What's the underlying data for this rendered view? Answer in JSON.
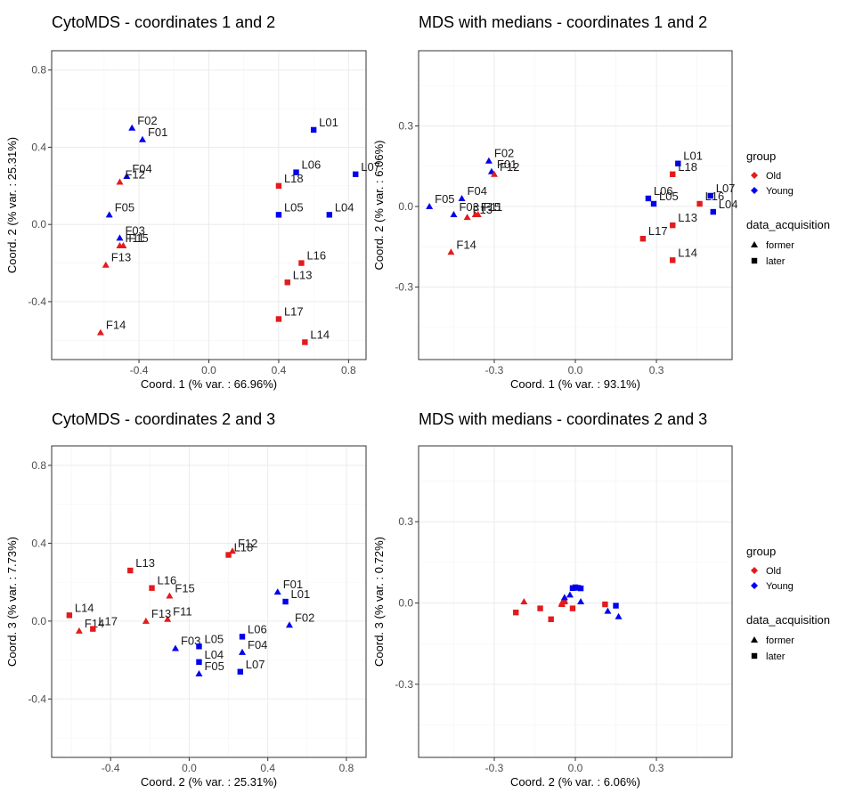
{
  "colors": {
    "Old": "#e41a1c",
    "Young": "#0000ee"
  },
  "chart_data": [
    {
      "type": "scatter",
      "title": "CytoMDS - coordinates 1 and 2",
      "xlabel": "Coord. 1 (% var. : 66.96%)",
      "ylabel": "Coord. 2 (% var. : 25.31%)",
      "xlim": [
        -0.9,
        0.9
      ],
      "ylim": [
        -0.7,
        0.9
      ],
      "xticks": [
        -0.4,
        0.0,
        0.4,
        0.8
      ],
      "xtick_labels": [
        "-0.4",
        "0.0",
        "0.4",
        "0.8"
      ],
      "yticks": [
        -0.4,
        0.0,
        0.4,
        0.8
      ],
      "ytick_labels": [
        "-0.4",
        "0.0",
        "0.4",
        "0.8"
      ],
      "grid": true,
      "points": [
        {
          "label": "F01",
          "x": -0.38,
          "y": 0.44,
          "group": "Young",
          "acq": "former"
        },
        {
          "label": "F02",
          "x": -0.44,
          "y": 0.5,
          "group": "Young",
          "acq": "former"
        },
        {
          "label": "F03",
          "x": -0.51,
          "y": -0.07,
          "group": "Young",
          "acq": "former"
        },
        {
          "label": "F04",
          "x": -0.47,
          "y": 0.25,
          "group": "Young",
          "acq": "former"
        },
        {
          "label": "F05",
          "x": -0.57,
          "y": 0.05,
          "group": "Young",
          "acq": "former"
        },
        {
          "label": "F11",
          "x": -0.51,
          "y": -0.11,
          "group": "Old",
          "acq": "former"
        },
        {
          "label": "F12",
          "x": -0.51,
          "y": 0.22,
          "group": "Old",
          "acq": "former"
        },
        {
          "label": "F13",
          "x": -0.59,
          "y": -0.21,
          "group": "Old",
          "acq": "former"
        },
        {
          "label": "F14",
          "x": -0.62,
          "y": -0.56,
          "group": "Old",
          "acq": "former"
        },
        {
          "label": "F15",
          "x": -0.49,
          "y": -0.11,
          "group": "Old",
          "acq": "former"
        },
        {
          "label": "L01",
          "x": 0.6,
          "y": 0.49,
          "group": "Young",
          "acq": "later"
        },
        {
          "label": "L04",
          "x": 0.69,
          "y": 0.05,
          "group": "Young",
          "acq": "later"
        },
        {
          "label": "L05",
          "x": 0.4,
          "y": 0.05,
          "group": "Young",
          "acq": "later"
        },
        {
          "label": "L06",
          "x": 0.5,
          "y": 0.27,
          "group": "Young",
          "acq": "later"
        },
        {
          "label": "L07",
          "x": 0.84,
          "y": 0.26,
          "group": "Young",
          "acq": "later"
        },
        {
          "label": "L13",
          "x": 0.45,
          "y": -0.3,
          "group": "Old",
          "acq": "later"
        },
        {
          "label": "L14",
          "x": 0.55,
          "y": -0.61,
          "group": "Old",
          "acq": "later"
        },
        {
          "label": "L16",
          "x": 0.53,
          "y": -0.2,
          "group": "Old",
          "acq": "later"
        },
        {
          "label": "L17",
          "x": 0.4,
          "y": -0.49,
          "group": "Old",
          "acq": "later"
        },
        {
          "label": "L18",
          "x": 0.4,
          "y": 0.2,
          "group": "Old",
          "acq": "later"
        }
      ]
    },
    {
      "type": "scatter",
      "title": "MDS with medians - coordinates 1 and 2",
      "xlabel": "Coord. 1 (% var. : 93.1%)",
      "ylabel": "Coord. 2 (% var. : 6.06%)",
      "xlim": [
        -0.58,
        0.58
      ],
      "ylim": [
        -0.57,
        0.58
      ],
      "xticks": [
        -0.3,
        0.0,
        0.3
      ],
      "xtick_labels": [
        "-0.3",
        "0.0",
        "0.3"
      ],
      "yticks": [
        -0.3,
        0.0,
        0.3
      ],
      "ytick_labels": [
        "-0.3",
        "0.0",
        "0.3"
      ],
      "grid": true,
      "legend": {
        "group_title": "group",
        "groups": [
          "Old",
          "Young"
        ],
        "acq_title": "data_acquisition",
        "acqs": [
          "former",
          "later"
        ]
      },
      "points": [
        {
          "label": "F01",
          "x": -0.31,
          "y": 0.13,
          "group": "Young",
          "acq": "former"
        },
        {
          "label": "F02",
          "x": -0.32,
          "y": 0.17,
          "group": "Young",
          "acq": "former"
        },
        {
          "label": "F03",
          "x": -0.45,
          "y": -0.03,
          "group": "Young",
          "acq": "former"
        },
        {
          "label": "F04",
          "x": -0.42,
          "y": 0.03,
          "group": "Young",
          "acq": "former"
        },
        {
          "label": "F05",
          "x": -0.54,
          "y": 0.0,
          "group": "Young",
          "acq": "former"
        },
        {
          "label": "F11",
          "x": -0.36,
          "y": -0.03,
          "group": "Old",
          "acq": "former"
        },
        {
          "label": "F12",
          "x": -0.3,
          "y": 0.12,
          "group": "Old",
          "acq": "former"
        },
        {
          "label": "F13",
          "x": -0.4,
          "y": -0.04,
          "group": "Old",
          "acq": "former"
        },
        {
          "label": "F14",
          "x": -0.46,
          "y": -0.17,
          "group": "Old",
          "acq": "former"
        },
        {
          "label": "F15",
          "x": -0.37,
          "y": -0.03,
          "group": "Old",
          "acq": "former"
        },
        {
          "label": "L01",
          "x": 0.38,
          "y": 0.16,
          "group": "Young",
          "acq": "later"
        },
        {
          "label": "L04",
          "x": 0.51,
          "y": -0.02,
          "group": "Young",
          "acq": "later"
        },
        {
          "label": "L05",
          "x": 0.29,
          "y": 0.01,
          "group": "Young",
          "acq": "later"
        },
        {
          "label": "L06",
          "x": 0.27,
          "y": 0.03,
          "group": "Young",
          "acq": "later"
        },
        {
          "label": "L07",
          "x": 0.5,
          "y": 0.04,
          "group": "Young",
          "acq": "later"
        },
        {
          "label": "L13",
          "x": 0.36,
          "y": -0.07,
          "group": "Old",
          "acq": "later"
        },
        {
          "label": "L14",
          "x": 0.36,
          "y": -0.2,
          "group": "Old",
          "acq": "later"
        },
        {
          "label": "L16",
          "x": 0.46,
          "y": 0.01,
          "group": "Old",
          "acq": "later"
        },
        {
          "label": "L17",
          "x": 0.25,
          "y": -0.12,
          "group": "Old",
          "acq": "later"
        },
        {
          "label": "L18",
          "x": 0.36,
          "y": 0.12,
          "group": "Old",
          "acq": "later"
        }
      ]
    },
    {
      "type": "scatter",
      "title": "CytoMDS - coordinates 2 and 3",
      "xlabel": "Coord. 2 (% var. : 25.31%)",
      "ylabel": "Coord. 3 (% var. : 7.73%)",
      "xlim": [
        -0.7,
        0.9
      ],
      "ylim": [
        -0.7,
        0.9
      ],
      "xticks": [
        -0.4,
        0.0,
        0.4,
        0.8
      ],
      "xtick_labels": [
        "-0.4",
        "0.0",
        "0.4",
        "0.8"
      ],
      "yticks": [
        -0.4,
        0.0,
        0.4,
        0.8
      ],
      "ytick_labels": [
        "-0.4",
        "0.0",
        "0.4",
        "0.8"
      ],
      "grid": true,
      "points": [
        {
          "label": "F01",
          "x": 0.45,
          "y": 0.15,
          "group": "Young",
          "acq": "former"
        },
        {
          "label": "F02",
          "x": 0.51,
          "y": -0.02,
          "group": "Young",
          "acq": "former"
        },
        {
          "label": "F03",
          "x": -0.07,
          "y": -0.14,
          "group": "Young",
          "acq": "former"
        },
        {
          "label": "F04",
          "x": 0.27,
          "y": -0.16,
          "group": "Young",
          "acq": "former"
        },
        {
          "label": "F05",
          "x": 0.05,
          "y": -0.27,
          "group": "Young",
          "acq": "former"
        },
        {
          "label": "F11",
          "x": -0.11,
          "y": 0.01,
          "group": "Old",
          "acq": "former"
        },
        {
          "label": "F12",
          "x": 0.22,
          "y": 0.36,
          "group": "Old",
          "acq": "former"
        },
        {
          "label": "F13",
          "x": -0.22,
          "y": 0.0,
          "group": "Old",
          "acq": "former"
        },
        {
          "label": "F14",
          "x": -0.56,
          "y": -0.05,
          "group": "Old",
          "acq": "former"
        },
        {
          "label": "F15",
          "x": -0.1,
          "y": 0.13,
          "group": "Old",
          "acq": "former"
        },
        {
          "label": "L01",
          "x": 0.49,
          "y": 0.1,
          "group": "Young",
          "acq": "later"
        },
        {
          "label": "L04",
          "x": 0.05,
          "y": -0.21,
          "group": "Young",
          "acq": "later"
        },
        {
          "label": "L05",
          "x": 0.05,
          "y": -0.13,
          "group": "Young",
          "acq": "later"
        },
        {
          "label": "L06",
          "x": 0.27,
          "y": -0.08,
          "group": "Young",
          "acq": "later"
        },
        {
          "label": "L07",
          "x": 0.26,
          "y": -0.26,
          "group": "Young",
          "acq": "later"
        },
        {
          "label": "L13",
          "x": -0.3,
          "y": 0.26,
          "group": "Old",
          "acq": "later"
        },
        {
          "label": "L14",
          "x": -0.61,
          "y": 0.03,
          "group": "Old",
          "acq": "later"
        },
        {
          "label": "L16",
          "x": -0.19,
          "y": 0.17,
          "group": "Old",
          "acq": "later"
        },
        {
          "label": "L17",
          "x": -0.49,
          "y": -0.04,
          "group": "Old",
          "acq": "later"
        },
        {
          "label": "L18",
          "x": 0.2,
          "y": 0.34,
          "group": "Old",
          "acq": "later"
        }
      ]
    },
    {
      "type": "scatter",
      "title": "MDS with medians - coordinates 2 and 3",
      "xlabel": "Coord. 2 (% var. : 6.06%)",
      "ylabel": "Coord. 3 (% var. : 0.72%)",
      "xlim": [
        -0.58,
        0.58
      ],
      "ylim": [
        -0.57,
        0.58
      ],
      "xticks": [
        -0.3,
        0.0,
        0.3
      ],
      "xtick_labels": [
        "-0.3",
        "0.0",
        "0.3"
      ],
      "yticks": [
        -0.3,
        0.0,
        0.3
      ],
      "ytick_labels": [
        "-0.3",
        "0.0",
        "0.3"
      ],
      "grid": true,
      "legend": {
        "group_title": "group",
        "groups": [
          "Old",
          "Young"
        ],
        "acq_title": "data_acquisition",
        "acqs": [
          "former",
          "later"
        ]
      },
      "points": [
        {
          "x": -0.19,
          "y": 0.005,
          "group": "Old",
          "acq": "former"
        },
        {
          "x": -0.05,
          "y": -0.005,
          "group": "Old",
          "acq": "former"
        },
        {
          "x": -0.04,
          "y": 0.005,
          "group": "Old",
          "acq": "former"
        },
        {
          "x": -0.04,
          "y": 0.01,
          "group": "Old",
          "acq": "former"
        },
        {
          "x": -0.05,
          "y": 0.0,
          "group": "Old",
          "acq": "former"
        },
        {
          "x": -0.22,
          "y": -0.035,
          "group": "Old",
          "acq": "later"
        },
        {
          "x": -0.13,
          "y": -0.02,
          "group": "Old",
          "acq": "later"
        },
        {
          "x": -0.09,
          "y": -0.06,
          "group": "Old",
          "acq": "later"
        },
        {
          "x": -0.01,
          "y": -0.02,
          "group": "Old",
          "acq": "later"
        },
        {
          "x": 0.11,
          "y": -0.005,
          "group": "Old",
          "acq": "later"
        },
        {
          "x": -0.04,
          "y": 0.02,
          "group": "Young",
          "acq": "former"
        },
        {
          "x": -0.02,
          "y": 0.03,
          "group": "Young",
          "acq": "former"
        },
        {
          "x": 0.02,
          "y": 0.005,
          "group": "Young",
          "acq": "former"
        },
        {
          "x": 0.12,
          "y": -0.03,
          "group": "Young",
          "acq": "former"
        },
        {
          "x": 0.16,
          "y": -0.05,
          "group": "Young",
          "acq": "former"
        },
        {
          "x": -0.01,
          "y": 0.055,
          "group": "Young",
          "acq": "later"
        },
        {
          "x": 0.0,
          "y": 0.058,
          "group": "Young",
          "acq": "later"
        },
        {
          "x": 0.01,
          "y": 0.056,
          "group": "Young",
          "acq": "later"
        },
        {
          "x": 0.02,
          "y": 0.054,
          "group": "Young",
          "acq": "later"
        },
        {
          "x": 0.15,
          "y": -0.01,
          "group": "Young",
          "acq": "later"
        }
      ]
    }
  ]
}
